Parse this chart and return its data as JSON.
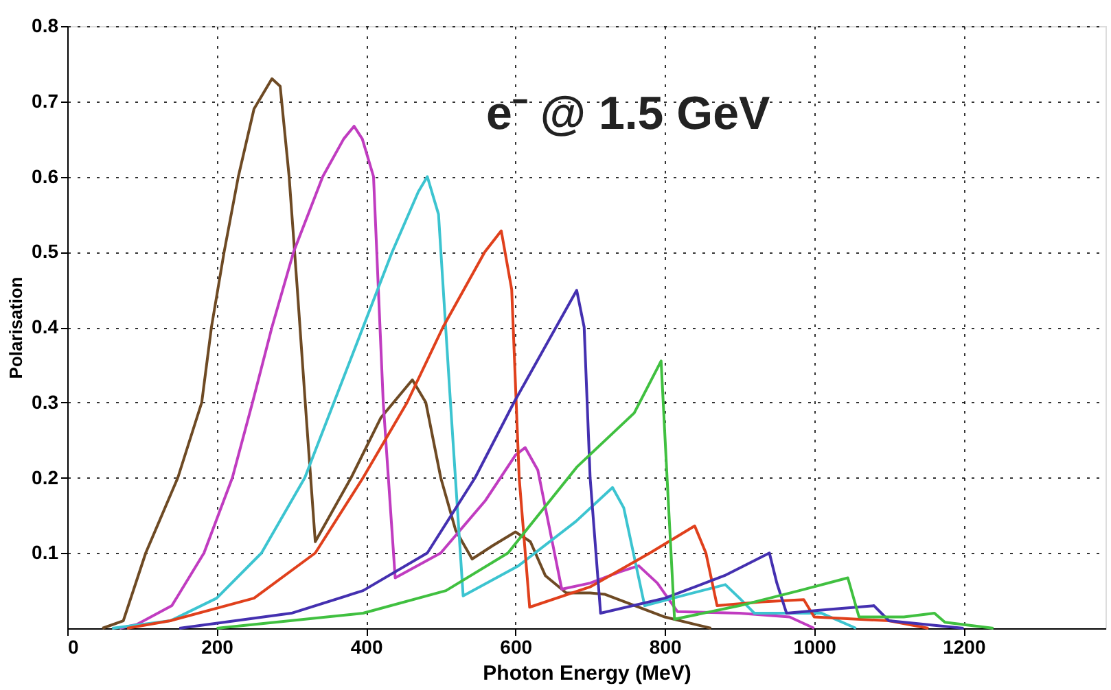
{
  "chart_data": {
    "type": "line",
    "xlabel": "Photon Energy (MeV)",
    "ylabel": "Polarisation",
    "annotations": [
      "e⁻ @ 1.5 GeV"
    ],
    "xlim": [
      0,
      1390
    ],
    "xticks": [
      0,
      200,
      400,
      600,
      800,
      1000,
      1200
    ],
    "ylim": [
      0,
      0.8
    ],
    "yticks": [
      0.1,
      0.2,
      0.3,
      0.4,
      0.5,
      0.6,
      0.7,
      0.8
    ],
    "grid": true,
    "marker": "none",
    "line_style": "solid",
    "series": [
      {
        "color": "#6e4a24",
        "x": [
          47,
          75,
          105,
          148,
          180,
          193,
          210,
          229,
          250,
          274,
          285,
          297,
          308,
          320,
          332,
          380,
          420,
          462,
          480,
          500,
          520,
          542,
          570,
          600,
          620,
          640,
          668,
          700,
          720,
          760,
          800,
          862
        ],
        "values": [
          0,
          0.01,
          0.1,
          0.2,
          0.3,
          0.4,
          0.5,
          0.6,
          0.69,
          0.73,
          0.72,
          0.6,
          0.45,
          0.28,
          0.115,
          0.2,
          0.28,
          0.33,
          0.3,
          0.2,
          0.13,
          0.092,
          0.11,
          0.128,
          0.115,
          0.07,
          0.047,
          0.047,
          0.045,
          0.03,
          0.015,
          0
        ]
      },
      {
        "color": "#c03cc0",
        "x": [
          70,
          93,
          140,
          183,
          221,
          248,
          274,
          303,
          342,
          370,
          384,
          395,
          410,
          423,
          439,
          500,
          560,
          600,
          613,
          630,
          662,
          700,
          740,
          765,
          790,
          817,
          900,
          967,
          1000
        ],
        "values": [
          0,
          0.005,
          0.03,
          0.1,
          0.2,
          0.3,
          0.4,
          0.5,
          0.6,
          0.65,
          0.667,
          0.65,
          0.6,
          0.3,
          0.067,
          0.1,
          0.17,
          0.23,
          0.24,
          0.21,
          0.052,
          0.06,
          0.075,
          0.083,
          0.06,
          0.022,
          0.02,
          0.015,
          0
        ]
      },
      {
        "color": "#3cc4d0",
        "x": [
          60,
          138,
          200,
          260,
          318,
          357,
          396,
          435,
          470,
          482,
          497,
          513,
          530,
          604,
          681,
          730,
          745,
          773,
          830,
          881,
          900,
          920,
          1010,
          1056
        ],
        "values": [
          0,
          0.01,
          0.04,
          0.1,
          0.2,
          0.3,
          0.4,
          0.5,
          0.58,
          0.6,
          0.55,
          0.3,
          0.043,
          0.083,
          0.142,
          0.187,
          0.16,
          0.03,
          0.045,
          0.058,
          0.04,
          0.02,
          0.02,
          0
        ]
      },
      {
        "color": "#e0401c",
        "x": [
          80,
          138,
          250,
          332,
          396,
          455,
          503,
          559,
          581,
          595,
          605,
          619,
          700,
          780,
          840,
          855,
          870,
          930,
          986,
          1000,
          1100,
          1153
        ],
        "values": [
          0,
          0.01,
          0.04,
          0.1,
          0.2,
          0.3,
          0.4,
          0.5,
          0.528,
          0.45,
          0.2,
          0.028,
          0.055,
          0.1,
          0.136,
          0.1,
          0.03,
          0.035,
          0.038,
          0.015,
          0.01,
          0
        ]
      },
      {
        "color": "#4430b0",
        "x": [
          150,
          300,
          396,
          482,
          546,
          598,
          682,
          692,
          700,
          714,
          800,
          880,
          940,
          950,
          963,
          1020,
          1080,
          1100,
          1200
        ],
        "values": [
          0,
          0.02,
          0.05,
          0.1,
          0.2,
          0.3,
          0.449,
          0.4,
          0.2,
          0.02,
          0.04,
          0.07,
          0.1,
          0.06,
          0.02,
          0.025,
          0.03,
          0.01,
          0
        ]
      },
      {
        "color": "#40c040",
        "x": [
          200,
          396,
          507,
          590,
          682,
          759,
          795,
          803,
          813,
          900,
          980,
          1045,
          1060,
          1120,
          1161,
          1175,
          1240
        ],
        "values": [
          0,
          0.02,
          0.05,
          0.1,
          0.214,
          0.286,
          0.355,
          0.2,
          0.012,
          0.03,
          0.05,
          0.067,
          0.015,
          0.015,
          0.02,
          0.008,
          0
        ]
      }
    ]
  }
}
